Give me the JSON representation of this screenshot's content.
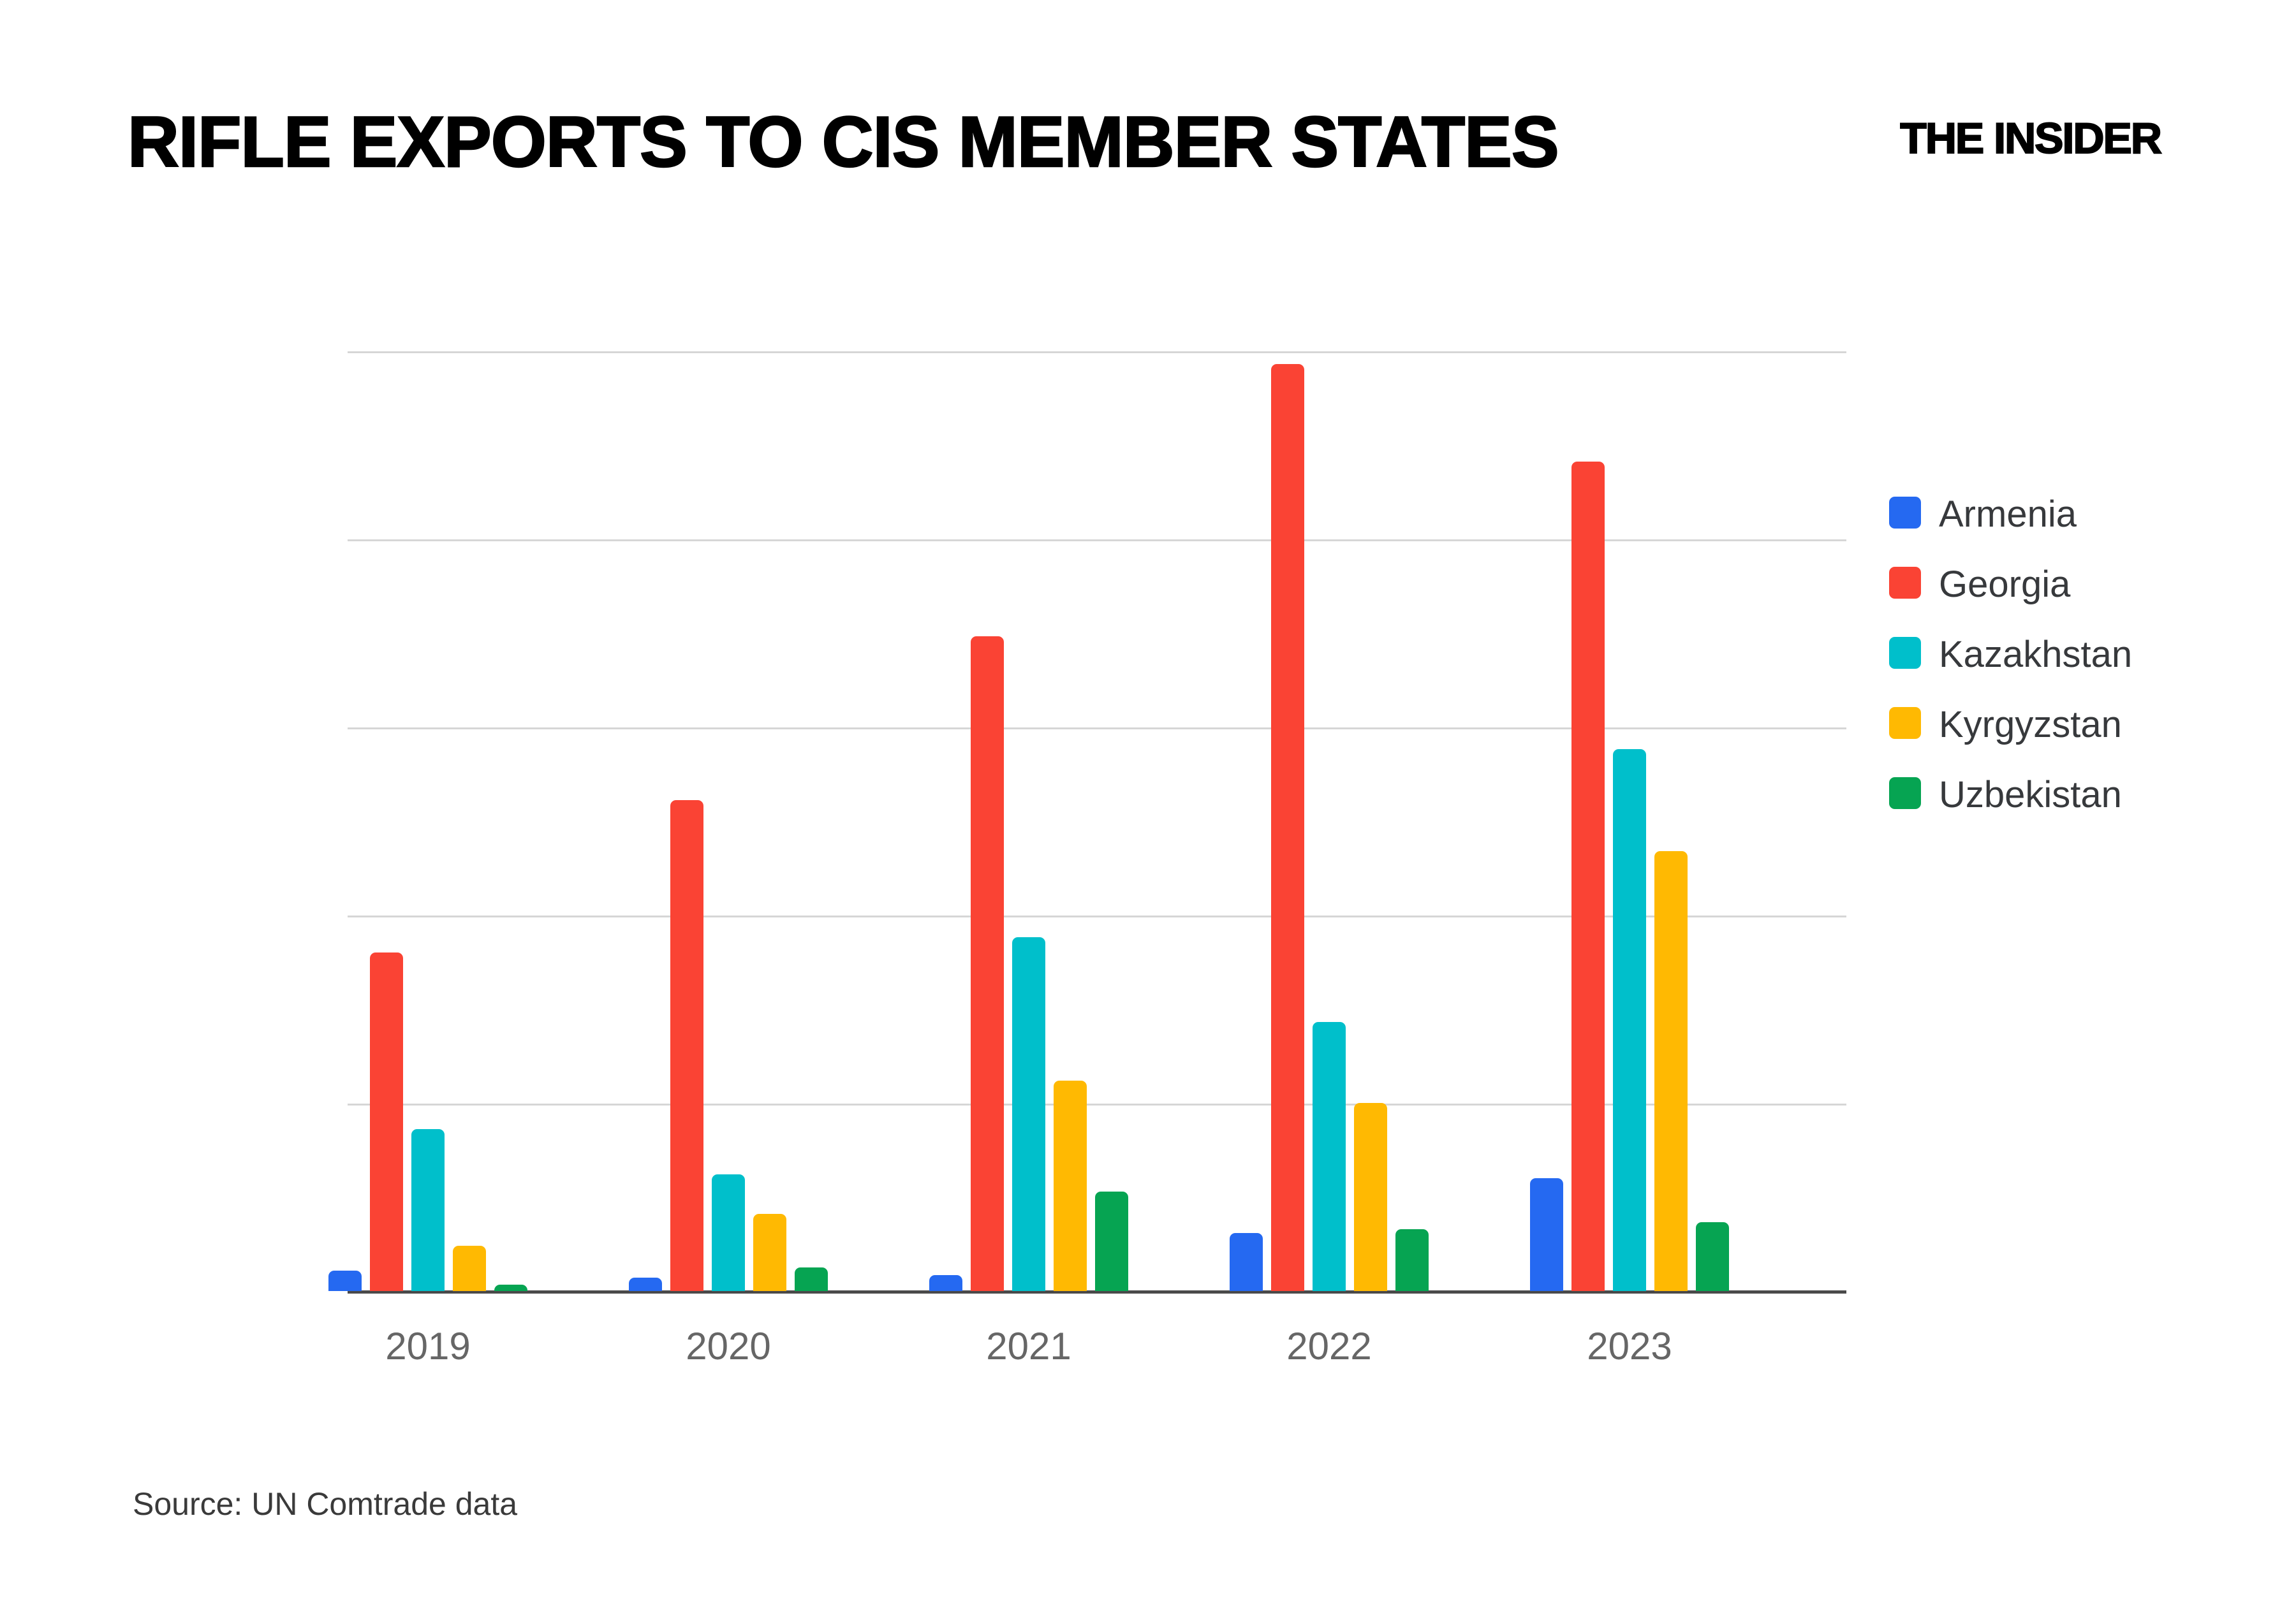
{
  "header": {
    "title": "RIFLE EXPORTS TO CIS MEMBER STATES",
    "logo": "THE INSIDER"
  },
  "source_note": "Source: UN Comtrade data",
  "chart_data": {
    "type": "bar",
    "title": "RIFLE EXPORTS TO CIS MEMBER STATES",
    "categories": [
      "2019",
      "2020",
      "2021",
      "2022",
      "2023"
    ],
    "series": [
      {
        "name": "Armenia",
        "color": "#2569F1",
        "values": [
          550,
          360,
          430,
          1550,
          3000
        ]
      },
      {
        "name": "Georgia",
        "color": "#FA4334",
        "values": [
          9000,
          13050,
          17400,
          24650,
          22050
        ]
      },
      {
        "name": "Kazakhstan",
        "color": "#00BFCB",
        "values": [
          4300,
          3100,
          9400,
          7150,
          14400
        ]
      },
      {
        "name": "Kyrgyzstan",
        "color": "#FFB902",
        "values": [
          1200,
          2050,
          5600,
          5000,
          11700
        ]
      },
      {
        "name": "Uzbekistan",
        "color": "#06A452",
        "values": [
          170,
          620,
          2650,
          1650,
          1830
        ]
      }
    ],
    "xlabel": "",
    "ylabel": "",
    "y_ticks": [
      0,
      5000,
      10000,
      15000,
      20000,
      25000
    ],
    "ylim": [
      0,
      25000
    ],
    "grid": true,
    "legend_position": "right",
    "colors": {
      "gridline": "#d6d6d6",
      "axis_line": "#4a4a4a",
      "tick_label": "#666666",
      "legend_text": "#37393c",
      "title_text": "#000000"
    }
  }
}
